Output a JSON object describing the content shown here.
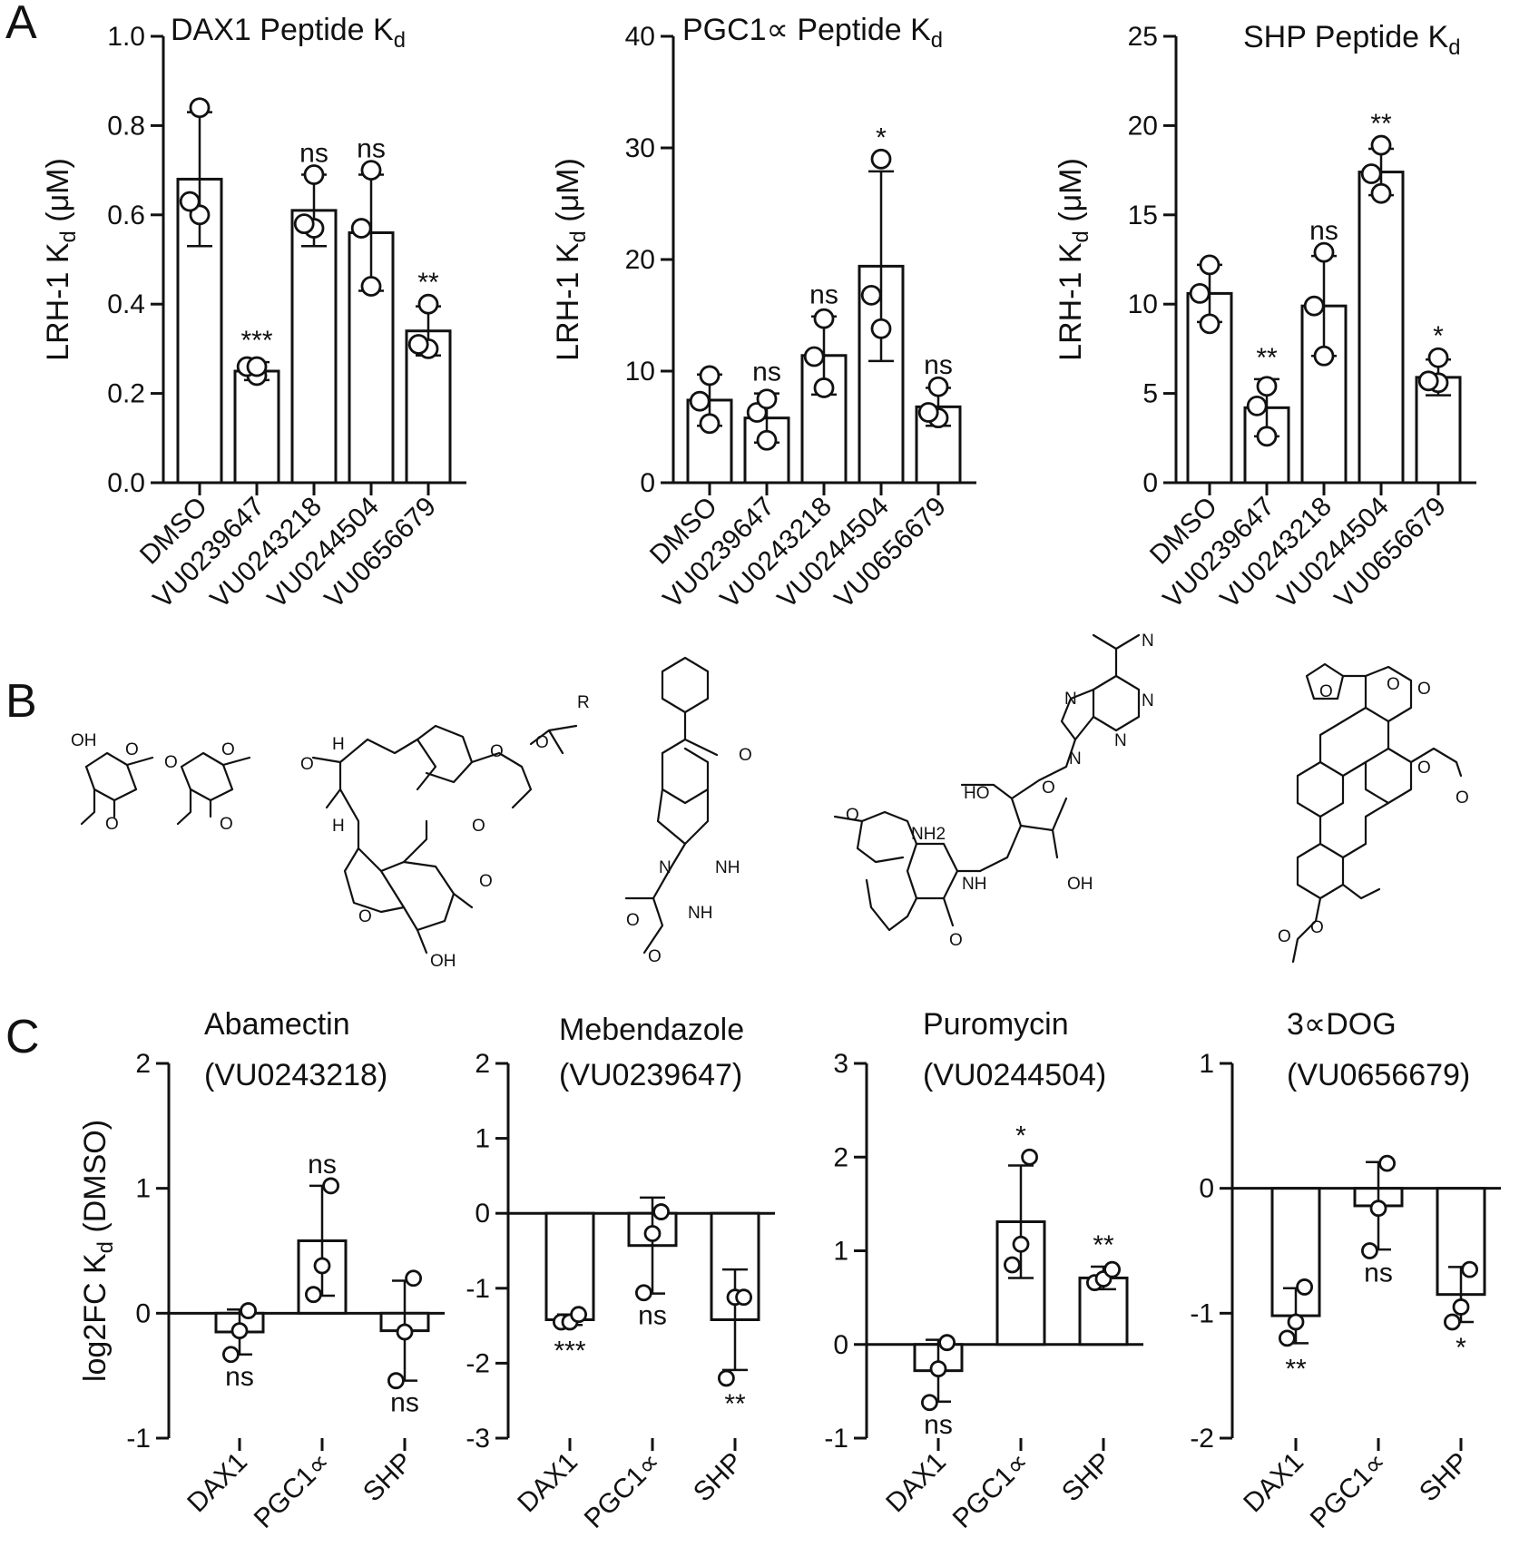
{
  "panel_letters": {
    "a": "A",
    "b": "B",
    "c": "C"
  },
  "structures": {
    "abamectin": {
      "labels": [
        "OH",
        "O",
        "O",
        "O",
        "O",
        "O",
        "H",
        "H",
        "O",
        "O",
        "O",
        "O",
        "O",
        "R",
        "O",
        "OH"
      ]
    },
    "mebendazole": {
      "labels": [
        "O",
        "N",
        "NH",
        "NH",
        "O",
        "O"
      ]
    },
    "puromycin": {
      "labels": [
        "N",
        "N",
        "N",
        "N",
        "N",
        "HO",
        "O",
        "NH2",
        "NH",
        "OH",
        "O",
        "O"
      ]
    },
    "dog3a": {
      "labels": [
        "O",
        "O",
        "O",
        "O",
        "O",
        "O",
        "O"
      ]
    }
  },
  "chart_data": [
    {
      "type": "bar",
      "title": "DAX1 Peptide Kd",
      "ylabel": "LRH-1 Kd (μM)",
      "ylim": [
        0,
        1.0
      ],
      "yticks": [
        0.0,
        0.2,
        0.4,
        0.6,
        0.8,
        1.0
      ],
      "ytick_labels": [
        "0.0",
        "0.2",
        "0.4",
        "0.6",
        "0.8",
        "1.0"
      ],
      "categories": [
        "DMSO",
        "VU0239647",
        "VU0243218",
        "VU0244504",
        "VU0656679"
      ],
      "values": [
        0.68,
        0.25,
        0.61,
        0.56,
        0.34
      ],
      "errors": [
        0.15,
        0.02,
        0.08,
        0.13,
        0.055
      ],
      "points": [
        [
          0.6,
          0.63,
          0.84
        ],
        [
          0.24,
          0.26,
          0.26
        ],
        [
          0.57,
          0.58,
          0.69
        ],
        [
          0.44,
          0.57,
          0.7
        ],
        [
          0.3,
          0.31,
          0.4
        ]
      ],
      "significance": [
        "",
        "***",
        "ns",
        "ns",
        "**"
      ]
    },
    {
      "type": "bar",
      "title": "PGC1∝ Peptide Kd",
      "ylabel": "LRH-1 Kd (μM)",
      "ylim": [
        0,
        40
      ],
      "yticks": [
        0,
        10,
        20,
        30,
        40
      ],
      "ytick_labels": [
        "0",
        "10",
        "20",
        "30",
        "40"
      ],
      "categories": [
        "DMSO",
        "VU0239647",
        "VU0243218",
        "VU0244504",
        "VU0656679"
      ],
      "values": [
        7.4,
        5.8,
        11.4,
        19.4,
        6.8
      ],
      "errors": [
        2.3,
        2.2,
        3.5,
        8.5,
        1.7
      ],
      "points": [
        [
          5.3,
          7.3,
          9.6
        ],
        [
          3.8,
          6.3,
          7.5
        ],
        [
          8.5,
          11.3,
          14.7
        ],
        [
          13.8,
          16.8,
          29.0
        ],
        [
          5.8,
          6.3,
          8.6
        ]
      ],
      "significance": [
        "",
        "ns",
        "ns",
        "*",
        "ns"
      ]
    },
    {
      "type": "bar",
      "title": "SHP Peptide Kd",
      "ylabel": "LRH-1 Kd (μM)",
      "ylim": [
        0,
        25
      ],
      "yticks": [
        0,
        5,
        10,
        15,
        20,
        25
      ],
      "ytick_labels": [
        "0",
        "5",
        "10",
        "15",
        "20",
        "25"
      ],
      "categories": [
        "DMSO",
        "VU0239647",
        "VU0243218",
        "VU0244504",
        "VU0656679"
      ],
      "values": [
        10.6,
        4.2,
        9.9,
        17.4,
        5.9
      ],
      "errors": [
        1.6,
        1.6,
        2.8,
        1.3,
        1.0
      ],
      "points": [
        [
          8.9,
          10.6,
          12.2
        ],
        [
          2.6,
          4.3,
          5.4
        ],
        [
          7.1,
          9.9,
          12.9
        ],
        [
          16.2,
          17.3,
          18.9
        ],
        [
          5.6,
          5.7,
          7.0
        ]
      ],
      "significance": [
        "",
        "**",
        "ns",
        "**",
        "*"
      ]
    },
    {
      "type": "bar",
      "title_line1": "Abamectin",
      "title_line2": "(VU0243218)",
      "ylabel": "log2FC  Kd (DMSO)",
      "ylim": [
        -1,
        2
      ],
      "yticks": [
        -1,
        0,
        1,
        2
      ],
      "ytick_labels": [
        "-1",
        "0",
        "1",
        "2"
      ],
      "categories": [
        "DAX1",
        "PGC1∝",
        "SHP"
      ],
      "values": [
        -0.15,
        0.58,
        -0.14
      ],
      "errors": [
        0.18,
        0.44,
        0.4
      ],
      "points": [
        [
          -0.33,
          -0.14,
          0.02
        ],
        [
          0.15,
          0.38,
          1.02
        ],
        [
          -0.54,
          -0.15,
          0.28
        ]
      ],
      "significance": [
        "ns",
        "ns",
        "ns"
      ]
    },
    {
      "type": "bar",
      "title_line1": "Mebendazole",
      "title_line2": "(VU0239647)",
      "ylim": [
        -3,
        2
      ],
      "yticks": [
        -3,
        -2,
        -1,
        0,
        1,
        2
      ],
      "ytick_labels": [
        "-3",
        "-2",
        "-1",
        "0",
        "1",
        "2"
      ],
      "categories": [
        "DAX1",
        "PGC1∝",
        "SHP"
      ],
      "values": [
        -1.42,
        -0.43,
        -1.42
      ],
      "errors": [
        0.07,
        0.64,
        0.67
      ],
      "points": [
        [
          -1.45,
          -1.45,
          -1.35
        ],
        [
          -1.06,
          -0.27,
          0.02
        ],
        [
          -2.2,
          -1.12,
          -1.12
        ]
      ],
      "significance": [
        "***",
        "ns",
        "**"
      ]
    },
    {
      "type": "bar",
      "title_line1": "Puromycin",
      "title_line2": "(VU0244504)",
      "ylim": [
        -1,
        3
      ],
      "yticks": [
        -1,
        0,
        1,
        2,
        3
      ],
      "ytick_labels": [
        "-1",
        "0",
        "1",
        "2",
        "3"
      ],
      "categories": [
        "DAX1",
        "PGC1∝",
        "SHP"
      ],
      "values": [
        -0.28,
        1.31,
        0.71
      ],
      "errors": [
        0.33,
        0.6,
        0.12
      ],
      "points": [
        [
          -0.62,
          -0.26,
          0.02
        ],
        [
          0.85,
          1.07,
          2.0
        ],
        [
          0.66,
          0.7,
          0.8
        ]
      ],
      "significance": [
        "ns",
        "*",
        "**"
      ]
    },
    {
      "type": "bar",
      "title_line1": "3∝DOG",
      "title_line2": "(VU0656679)",
      "ylim": [
        -2,
        1
      ],
      "yticks": [
        -2,
        -1,
        0,
        1
      ],
      "ytick_labels": [
        "-2",
        "-1",
        "0",
        "1"
      ],
      "categories": [
        "DAX1",
        "PGC1∝",
        "SHP"
      ],
      "values": [
        -1.02,
        -0.14,
        -0.85
      ],
      "errors": [
        0.22,
        0.35,
        0.22
      ],
      "points": [
        [
          -1.2,
          -1.07,
          -0.79
        ],
        [
          -0.5,
          -0.16,
          0.2
        ],
        [
          -1.07,
          -0.95,
          -0.65
        ]
      ],
      "significance": [
        "**",
        "ns",
        "*"
      ]
    }
  ]
}
